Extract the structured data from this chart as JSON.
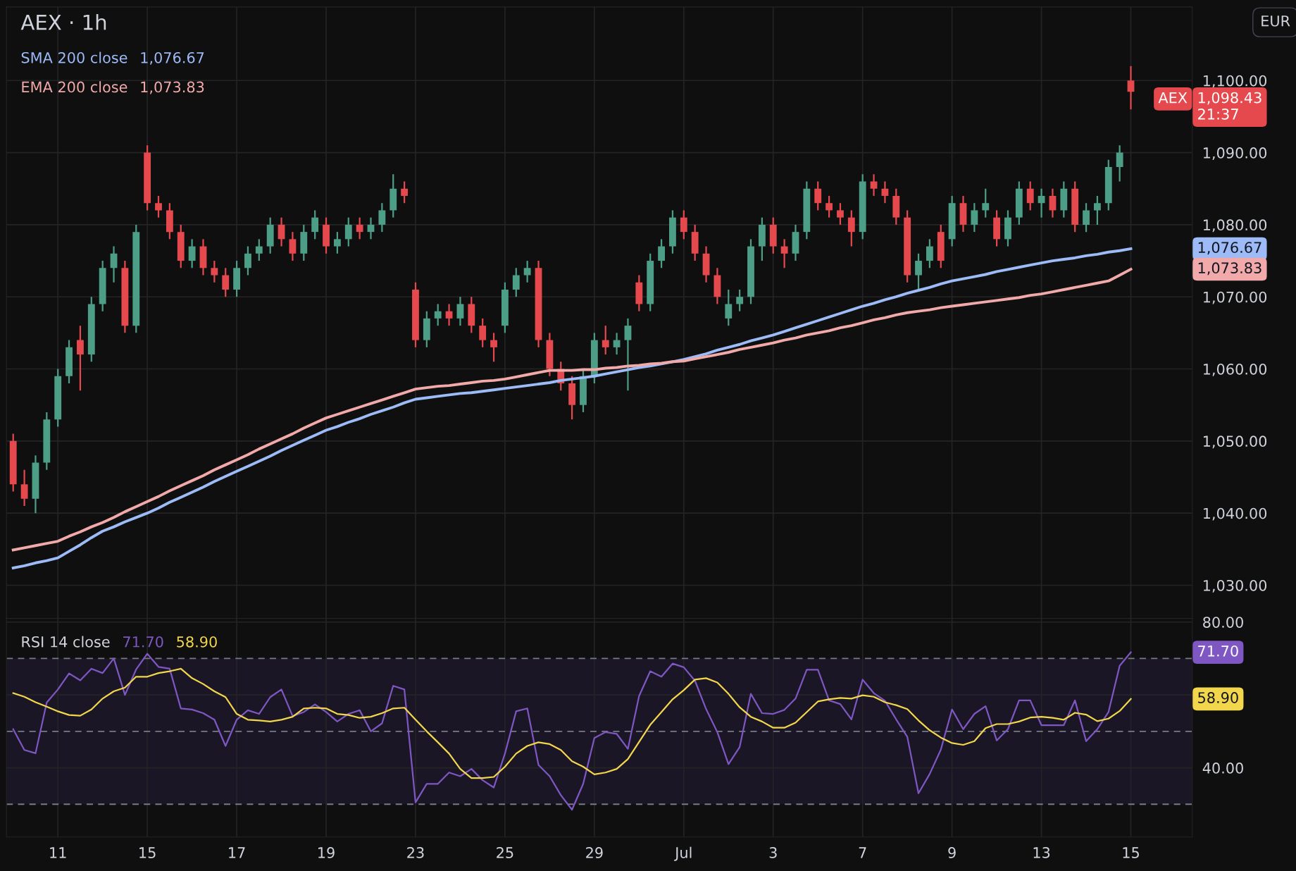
{
  "chart_data": [
    {
      "type": "candlestick",
      "title": "AEX · 1h",
      "categories": [
        null,
        null,
        null,
        null,
        null,
        null,
        null,
        null,
        null,
        null,
        null,
        null,
        null,
        null,
        null,
        null,
        null,
        null,
        null,
        null,
        null,
        null,
        null,
        null,
        null,
        null,
        null,
        null,
        null,
        null,
        null,
        null,
        null,
        null,
        null,
        null,
        null,
        null,
        null,
        null,
        null,
        null,
        null,
        null,
        null,
        null,
        null,
        null,
        null,
        null,
        null,
        null,
        null,
        null,
        null,
        null,
        null,
        null,
        null,
        null,
        null,
        null,
        null,
        null,
        null,
        null,
        null,
        null,
        null,
        null,
        null,
        null,
        null,
        null,
        null,
        null,
        null,
        null,
        null,
        null,
        null,
        null,
        null,
        null,
        null,
        null,
        null,
        null,
        null,
        null,
        null,
        null,
        null,
        null,
        null,
        null,
        null,
        null,
        null,
        null,
        null
      ],
      "ohlc": [
        [
          1050,
          1051,
          1043,
          1044
        ],
        [
          1044,
          1046,
          1041,
          1042
        ],
        [
          1042,
          1048,
          1040,
          1047
        ],
        [
          1047,
          1054,
          1046,
          1053
        ],
        [
          1053,
          1060,
          1052,
          1059
        ],
        [
          1059,
          1064,
          1058,
          1063
        ],
        [
          1064,
          1066,
          1057,
          1062
        ],
        [
          1062,
          1070,
          1061,
          1069
        ],
        [
          1069,
          1075,
          1068,
          1074
        ],
        [
          1074,
          1077,
          1072,
          1076
        ],
        [
          1074,
          1075,
          1065,
          1066
        ],
        [
          1066,
          1080,
          1065,
          1079
        ],
        [
          1090,
          1091,
          1082,
          1083
        ],
        [
          1083,
          1084,
          1081,
          1082
        ],
        [
          1082,
          1083,
          1078,
          1079
        ],
        [
          1079,
          1080,
          1074,
          1075
        ],
        [
          1075,
          1078,
          1074,
          1077
        ],
        [
          1077,
          1078,
          1073,
          1074
        ],
        [
          1074,
          1075,
          1072,
          1073
        ],
        [
          1073,
          1074,
          1070,
          1071
        ],
        [
          1071,
          1075,
          1070,
          1074
        ],
        [
          1074,
          1077,
          1073,
          1076
        ],
        [
          1076,
          1078,
          1075,
          1077
        ],
        [
          1077,
          1081,
          1076,
          1080
        ],
        [
          1080,
          1081,
          1077,
          1078
        ],
        [
          1078,
          1079,
          1075,
          1076
        ],
        [
          1076,
          1080,
          1075,
          1079
        ],
        [
          1079,
          1082,
          1078,
          1081
        ],
        [
          1080,
          1081,
          1076,
          1077
        ],
        [
          1077,
          1079,
          1076,
          1078
        ],
        [
          1078,
          1081,
          1077,
          1080
        ],
        [
          1080,
          1081,
          1078,
          1079
        ],
        [
          1079,
          1081,
          1078,
          1080
        ],
        [
          1080,
          1083,
          1079,
          1082
        ],
        [
          1082,
          1087,
          1081,
          1085
        ],
        [
          1085,
          1086,
          1083,
          1084
        ],
        [
          1071,
          1072,
          1063,
          1064
        ],
        [
          1064,
          1068,
          1063,
          1067
        ],
        [
          1067,
          1069,
          1066,
          1068
        ],
        [
          1068,
          1069,
          1066,
          1067
        ],
        [
          1067,
          1070,
          1066,
          1069
        ],
        [
          1069,
          1070,
          1065,
          1066
        ],
        [
          1066,
          1067,
          1063,
          1064
        ],
        [
          1064,
          1065,
          1061,
          1063
        ],
        [
          1066,
          1072,
          1065,
          1071
        ],
        [
          1071,
          1074,
          1070,
          1073
        ],
        [
          1073,
          1075,
          1072,
          1074
        ],
        [
          1074,
          1075,
          1063,
          1064
        ],
        [
          1064,
          1065,
          1059,
          1060
        ],
        [
          1060,
          1061,
          1057,
          1058
        ],
        [
          1058,
          1059,
          1053,
          1055
        ],
        [
          1055,
          1060,
          1054,
          1059
        ],
        [
          1059,
          1065,
          1058,
          1064
        ],
        [
          1064,
          1066,
          1062,
          1063
        ],
        [
          1063,
          1065,
          1062,
          1064
        ],
        [
          1064,
          1067,
          1057,
          1066
        ],
        [
          1072,
          1073,
          1068,
          1069
        ],
        [
          1069,
          1076,
          1068,
          1075
        ],
        [
          1075,
          1078,
          1074,
          1077
        ],
        [
          1077,
          1082,
          1076,
          1081
        ],
        [
          1081,
          1082,
          1078,
          1079
        ],
        [
          1079,
          1080,
          1075,
          1076
        ],
        [
          1076,
          1077,
          1072,
          1073
        ],
        [
          1073,
          1074,
          1069,
          1070
        ],
        [
          1067,
          1071,
          1066,
          1069
        ],
        [
          1069,
          1071,
          1068,
          1070
        ],
        [
          1070,
          1078,
          1069,
          1077
        ],
        [
          1077,
          1081,
          1075,
          1080
        ],
        [
          1080,
          1081,
          1076,
          1077
        ],
        [
          1077,
          1078,
          1074,
          1076
        ],
        [
          1076,
          1080,
          1075,
          1079
        ],
        [
          1079,
          1086,
          1078,
          1085
        ],
        [
          1085,
          1086,
          1082,
          1083
        ],
        [
          1083,
          1084,
          1081,
          1082
        ],
        [
          1082,
          1083,
          1080,
          1081
        ],
        [
          1081,
          1082,
          1077,
          1079
        ],
        [
          1079,
          1087,
          1078,
          1086
        ],
        [
          1086,
          1087,
          1084,
          1085
        ],
        [
          1085,
          1086,
          1083,
          1084
        ],
        [
          1084,
          1085,
          1080,
          1081
        ],
        [
          1081,
          1082,
          1072,
          1073
        ],
        [
          1073,
          1076,
          1071,
          1075
        ],
        [
          1075,
          1078,
          1074,
          1077
        ],
        [
          1079,
          1080,
          1074,
          1075
        ],
        [
          1078,
          1084,
          1077,
          1083
        ],
        [
          1083,
          1084,
          1079,
          1080
        ],
        [
          1080,
          1083,
          1079,
          1082
        ],
        [
          1082,
          1085,
          1081,
          1083
        ],
        [
          1081,
          1082,
          1077,
          1078
        ],
        [
          1078,
          1082,
          1077,
          1081
        ],
        [
          1081,
          1086,
          1080,
          1085
        ],
        [
          1085,
          1086,
          1082,
          1083
        ],
        [
          1083,
          1085,
          1081,
          1084
        ],
        [
          1084,
          1085,
          1081,
          1082
        ],
        [
          1082,
          1086,
          1081,
          1085
        ],
        [
          1085,
          1086,
          1079,
          1080
        ],
        [
          1080,
          1083,
          1079,
          1082
        ],
        [
          1082,
          1084,
          1080,
          1083
        ],
        [
          1083,
          1089,
          1082,
          1088
        ],
        [
          1088,
          1091,
          1086,
          1090
        ],
        [
          1100,
          1102,
          1096,
          1098.43
        ]
      ],
      "colors": [
        "#e5484d",
        "#e5484d",
        "#4c9e87",
        "#4c9e87",
        "#4c9e87",
        "#4c9e87",
        "#e5484d",
        "#4c9e87",
        "#4c9e87",
        "#4c9e87",
        "#e5484d",
        "#4c9e87",
        "#e5484d",
        "#e5484d",
        "#e5484d",
        "#e5484d",
        "#4c9e87",
        "#e5484d",
        "#e5484d",
        "#e5484d",
        "#4c9e87",
        "#4c9e87",
        "#4c9e87",
        "#4c9e87",
        "#e5484d",
        "#e5484d",
        "#4c9e87",
        "#4c9e87",
        "#e5484d",
        "#4c9e87",
        "#4c9e87",
        "#e5484d",
        "#4c9e87",
        "#4c9e87",
        "#4c9e87",
        "#e5484d",
        "#e5484d",
        "#4c9e87",
        "#4c9e87",
        "#e5484d",
        "#4c9e87",
        "#e5484d",
        "#e5484d",
        "#e5484d",
        "#4c9e87",
        "#4c9e87",
        "#4c9e87",
        "#e5484d",
        "#e5484d",
        "#e5484d",
        "#e5484d",
        "#4c9e87",
        "#4c9e87",
        "#e5484d",
        "#4c9e87",
        "#4c9e87",
        "#e5484d",
        "#4c9e87",
        "#4c9e87",
        "#4c9e87",
        "#e5484d",
        "#e5484d",
        "#e5484d",
        "#e5484d",
        "#4c9e87",
        "#4c9e87",
        "#4c9e87",
        "#4c9e87",
        "#e5484d",
        "#e5484d",
        "#4c9e87",
        "#4c9e87",
        "#e5484d",
        "#e5484d",
        "#e5484d",
        "#e5484d",
        "#4c9e87",
        "#e5484d",
        "#e5484d",
        "#e5484d",
        "#e5484d",
        "#4c9e87",
        "#4c9e87",
        "#e5484d",
        "#4c9e87",
        "#e5484d",
        "#4c9e87",
        "#4c9e87",
        "#e5484d",
        "#4c9e87",
        "#4c9e87",
        "#e5484d",
        "#4c9e87",
        "#e5484d",
        "#4c9e87",
        "#e5484d",
        "#4c9e87",
        "#4c9e87",
        "#4c9e87",
        "#4c9e87",
        "#e5484d"
      ],
      "series": [
        {
          "name": "SMA 200 close",
          "type": "line",
          "color": "#9cbbf7",
          "values": [
            1032.4,
            1032.7,
            1033.1,
            1033.4,
            1033.8,
            1034.7,
            1035.6,
            1036.6,
            1037.5,
            1038.1,
            1038.8,
            1039.4,
            1040.0,
            1040.7,
            1041.5,
            1042.2,
            1042.9,
            1043.6,
            1044.4,
            1045.1,
            1045.8,
            1046.5,
            1047.2,
            1047.9,
            1048.7,
            1049.4,
            1050.1,
            1050.8,
            1051.5,
            1052.0,
            1052.6,
            1053.1,
            1053.7,
            1054.2,
            1054.7,
            1055.3,
            1055.8,
            1056.0,
            1056.2,
            1056.4,
            1056.6,
            1056.7,
            1056.9,
            1057.1,
            1057.3,
            1057.5,
            1057.7,
            1057.9,
            1058.1,
            1058.4,
            1058.6,
            1058.8,
            1059.0,
            1059.3,
            1059.6,
            1059.9,
            1060.2,
            1060.4,
            1060.7,
            1061.0,
            1061.3,
            1061.7,
            1062.1,
            1062.6,
            1063.0,
            1063.4,
            1063.9,
            1064.3,
            1064.7,
            1065.2,
            1065.7,
            1066.2,
            1066.7,
            1067.2,
            1067.7,
            1068.2,
            1068.7,
            1069.1,
            1069.6,
            1070.0,
            1070.5,
            1070.9,
            1071.3,
            1071.8,
            1072.2,
            1072.5,
            1072.8,
            1073.1,
            1073.5,
            1073.8,
            1074.1,
            1074.4,
            1074.7,
            1075.0,
            1075.2,
            1075.4,
            1075.7,
            1075.9,
            1076.2,
            1076.4,
            1076.67
          ]
        },
        {
          "name": "EMA 200 close",
          "type": "line",
          "color": "#f2a9a9",
          "values": [
            1034.9,
            1035.2,
            1035.5,
            1035.8,
            1036.1,
            1036.8,
            1037.4,
            1038.1,
            1038.7,
            1039.4,
            1040.2,
            1040.9,
            1041.6,
            1042.3,
            1043.1,
            1043.8,
            1044.5,
            1045.2,
            1046.0,
            1046.7,
            1047.4,
            1048.1,
            1048.9,
            1049.6,
            1050.3,
            1051.0,
            1051.8,
            1052.5,
            1053.2,
            1053.7,
            1054.2,
            1054.7,
            1055.2,
            1055.7,
            1056.2,
            1056.7,
            1057.2,
            1057.4,
            1057.6,
            1057.7,
            1057.9,
            1058.1,
            1058.3,
            1058.4,
            1058.6,
            1058.9,
            1059.2,
            1059.5,
            1059.8,
            1059.8,
            1059.8,
            1059.9,
            1059.9,
            1060.1,
            1060.2,
            1060.4,
            1060.5,
            1060.7,
            1060.8,
            1061.0,
            1061.1,
            1061.4,
            1061.7,
            1062.0,
            1062.3,
            1062.7,
            1063.0,
            1063.3,
            1063.6,
            1064.0,
            1064.3,
            1064.7,
            1065.0,
            1065.3,
            1065.7,
            1066.0,
            1066.4,
            1066.8,
            1067.1,
            1067.5,
            1067.8,
            1068.0,
            1068.2,
            1068.5,
            1068.7,
            1068.9,
            1069.1,
            1069.3,
            1069.5,
            1069.7,
            1069.9,
            1070.2,
            1070.4,
            1070.7,
            1071.0,
            1071.3,
            1071.6,
            1071.9,
            1072.2,
            1073.0,
            1073.83
          ]
        }
      ],
      "ylim": [
        1025.4,
        1110.2
      ],
      "yticks": [
        {
          "value": 1030,
          "label": "1,030.00"
        },
        {
          "value": 1040,
          "label": "1,040.00"
        },
        {
          "value": 1050,
          "label": "1,050.00"
        },
        {
          "value": 1060,
          "label": "1,060.00"
        },
        {
          "value": 1070,
          "label": "1,070.00"
        },
        {
          "value": 1080,
          "label": "1,080.00"
        },
        {
          "value": 1090,
          "label": "1,090.00"
        },
        {
          "value": 1100,
          "label": "1,100.00"
        }
      ],
      "grid": true,
      "tick_labels": "y",
      "annotations": [
        "1,076.67",
        "1,073.83",
        "1,098.43",
        "AEX",
        "21:37",
        "EUR"
      ]
    },
    {
      "type": "line",
      "title": "RSI 14 close",
      "categories": [
        null,
        null,
        null,
        null,
        "11",
        null,
        null,
        null,
        null,
        null,
        null,
        null,
        "15",
        null,
        null,
        null,
        null,
        null,
        null,
        null,
        "17",
        null,
        null,
        null,
        null,
        null,
        null,
        null,
        "19",
        null,
        null,
        null,
        null,
        null,
        null,
        null,
        "23",
        null,
        null,
        null,
        null,
        null,
        null,
        null,
        "25",
        null,
        null,
        null,
        null,
        null,
        null,
        null,
        "29",
        null,
        null,
        null,
        null,
        null,
        null,
        null,
        "Jul",
        null,
        null,
        null,
        null,
        null,
        null,
        null,
        "3",
        null,
        null,
        null,
        null,
        null,
        null,
        null,
        "7",
        null,
        null,
        null,
        null,
        null,
        null,
        null,
        "9",
        null,
        null,
        null,
        null,
        null,
        null,
        null,
        "13",
        null,
        null,
        null,
        null,
        null,
        null,
        null,
        "15"
      ],
      "series": [
        {
          "color": "#7e57c2",
          "values": [
            50.6,
            44.9,
            44,
            57.9,
            61.5,
            65.9,
            64,
            67.2,
            66,
            70,
            60,
            67,
            71.3,
            67.7,
            67.2,
            56.3,
            56,
            55,
            53.2,
            46,
            53.2,
            55.8,
            54.8,
            59.4,
            61.5,
            54.2,
            55.3,
            57.4,
            55.3,
            52.7,
            54.8,
            55.8,
            50,
            52.2,
            62.5,
            61.5,
            30.5,
            35.6,
            35.6,
            38.7,
            37.7,
            39.7,
            36.6,
            34.6,
            43.9,
            55.5,
            56.3,
            40.8,
            37.7,
            32.5,
            28.5,
            35.6,
            48.2,
            49.8,
            49.3,
            45.2,
            59.7,
            66.5,
            65,
            68.6,
            67.6,
            63.9,
            56.1,
            49.8,
            41,
            45.7,
            60.3,
            55,
            54.8,
            55.9,
            59,
            66.9,
            66.9,
            58.5,
            57.5,
            53.3,
            64.2,
            60.5,
            58.4,
            53.3,
            48.5,
            33,
            38.3,
            45,
            56,
            50.6,
            54.8,
            56.9,
            47.5,
            50.6,
            58.5,
            58.5,
            51.7,
            51.7,
            51.7,
            58.5,
            47.3,
            50.6,
            55.3,
            68,
            71.7
          ]
        },
        {
          "color": "#f2d64b",
          "values": [
            60.5,
            59.5,
            58,
            56.8,
            55.5,
            54.5,
            54.3,
            56,
            59,
            61,
            62,
            65,
            65,
            66,
            66.5,
            67.2,
            64.6,
            63,
            61,
            59.4,
            54.8,
            53.2,
            53,
            52.7,
            53.2,
            54,
            56.3,
            56.5,
            56.3,
            54.8,
            54.5,
            53.7,
            54,
            55,
            56.3,
            56.5,
            53.2,
            50,
            47,
            43.9,
            39.7,
            37.2,
            37.2,
            37.5,
            40.3,
            43.9,
            46,
            47,
            46.5,
            44.9,
            41.8,
            40.3,
            38.2,
            38.7,
            39.7,
            42.4,
            47.1,
            51.8,
            55.3,
            58.8,
            61.3,
            64.2,
            64.6,
            63.4,
            60.3,
            56.6,
            54,
            52.7,
            51,
            51,
            52.4,
            55.3,
            58.2,
            58.8,
            59.2,
            59,
            59.9,
            59.5,
            58,
            57.2,
            56.1,
            53,
            50.3,
            48.3,
            46.8,
            46.3,
            47.3,
            50.9,
            52,
            52,
            52.7,
            53.8,
            54,
            53.7,
            53.2,
            55.1,
            54.6,
            52.8,
            53.5,
            55.6,
            58.9
          ]
        }
      ],
      "ylim": [
        21,
        81
      ],
      "yticks": [
        {
          "value": 40,
          "label": "40.00"
        },
        {
          "value": 60,
          "label": null
        },
        {
          "value": 80,
          "label": "80.00"
        }
      ],
      "grid": true,
      "ref_lines": [
        {
          "axis": "y",
          "value": 70,
          "line_style": "dashed",
          "color": "#787b86"
        },
        {
          "axis": "y",
          "value": 50,
          "line_style": "dashed",
          "color": "#787b86"
        },
        {
          "axis": "y",
          "value": 30,
          "line_style": "dashed",
          "color": "#787b86"
        }
      ],
      "bands": [
        {
          "axis": "y",
          "from": 30,
          "to": 70,
          "color": "#1a1626"
        }
      ],
      "annotations": [
        "71.70",
        "58.90"
      ]
    }
  ]
}
